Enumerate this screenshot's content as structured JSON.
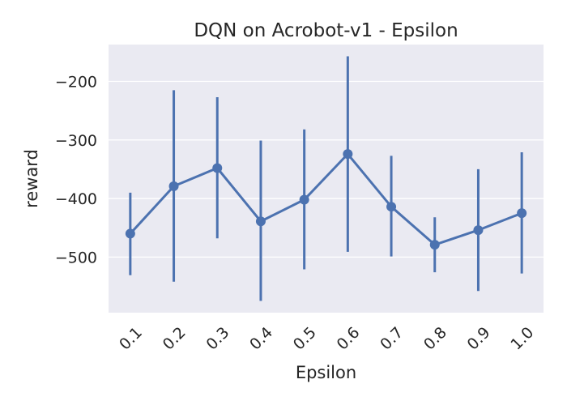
{
  "chart_data": {
    "type": "line",
    "title": "DQN on Acrobot-v1 - Epsilon",
    "xlabel": "Epsilon",
    "ylabel": "reward",
    "categories": [
      "0.1",
      "0.2",
      "0.3",
      "0.4",
      "0.5",
      "0.6",
      "0.7",
      "0.8",
      "0.9",
      "1.0"
    ],
    "series": [
      {
        "values": [
          -460,
          -379,
          -348,
          -439,
          -402,
          -324,
          -414,
          -479,
          -454,
          -425
        ],
        "ci_low": [
          -531,
          -542,
          -468,
          -575,
          -521,
          -491,
          -499,
          -526,
          -558,
          -528
        ],
        "ci_high": [
          -390,
          -215,
          -227,
          -301,
          -282,
          -157,
          -327,
          -432,
          -350,
          -321
        ]
      }
    ],
    "yticks": [
      -500,
      -400,
      -300,
      -200
    ],
    "ytick_labels": [
      "−500",
      "−400",
      "−300",
      "−200"
    ],
    "ylim": [
      -595,
      -137
    ],
    "grid": true,
    "legend": "none",
    "colors": {
      "series": "#4c72b0",
      "plot_background": "#eaeaf2",
      "grid": "#ffffff",
      "text": "#262626"
    }
  }
}
